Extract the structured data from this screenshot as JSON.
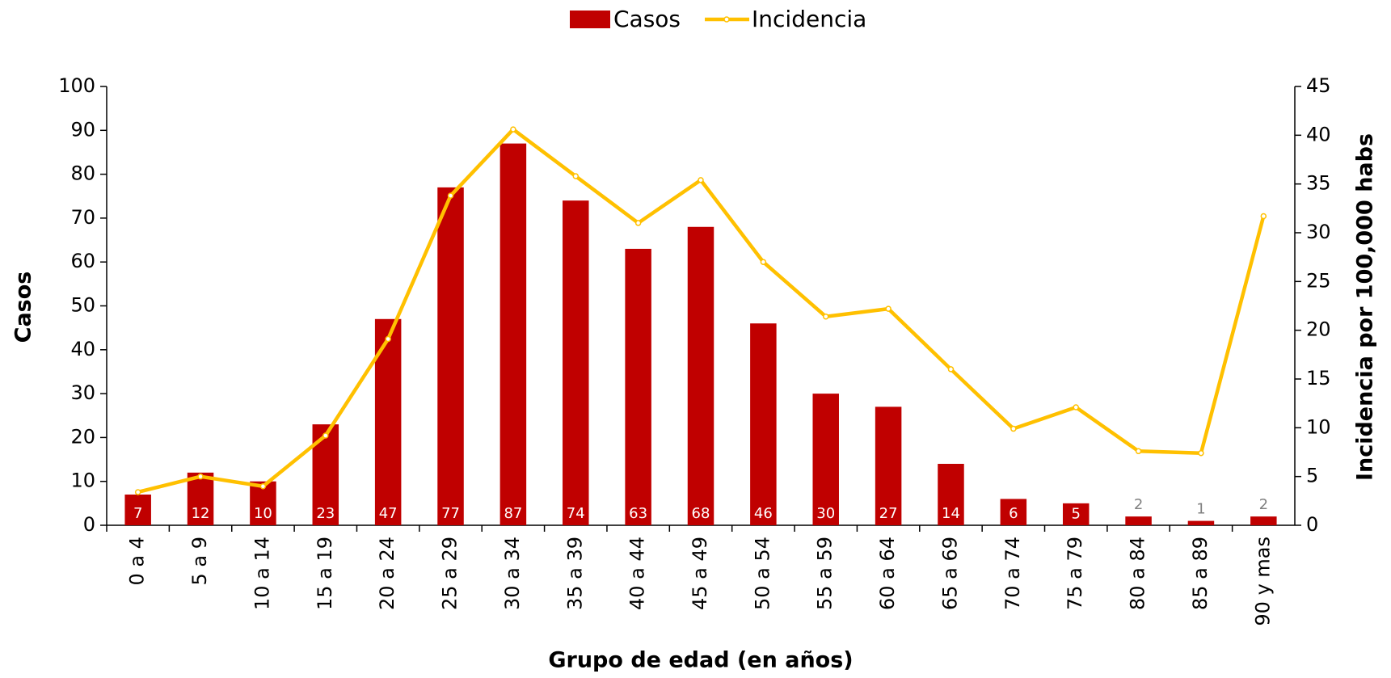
{
  "chart_data": {
    "type": "bar",
    "x_label": "Grupo de edad (en años)",
    "y_label": "Casos",
    "y2_label": "Incidencia por 100,000 habs",
    "categories": [
      "0 a 4",
      "5 a 9",
      "10 a 14",
      "15 a 19",
      "20 a 24",
      "25 a 29",
      "30 a 34",
      "35 a 39",
      "40 a 44",
      "45 a 49",
      "50 a 54",
      "55 a 59",
      "60 a 64",
      "65 a 69",
      "70 a 74",
      "75 a 79",
      "80 a 84",
      "85 a 89",
      "90 y mas"
    ],
    "series": [
      {
        "name": "Casos",
        "type": "bar",
        "color": "#c00000",
        "values": [
          7,
          12,
          10,
          23,
          47,
          77,
          87,
          74,
          63,
          68,
          46,
          30,
          27,
          14,
          6,
          5,
          2,
          1,
          2
        ]
      },
      {
        "name": "Incidencia",
        "type": "line",
        "axis": "y2",
        "color": "#ffc000",
        "values": [
          3.4,
          5.0,
          4.0,
          9.2,
          19.1,
          33.8,
          40.6,
          35.8,
          31.0,
          35.4,
          27.0,
          21.4,
          22.2,
          16.0,
          9.9,
          12.1,
          7.6,
          7.4,
          31.7
        ]
      }
    ],
    "ylim": [
      0,
      100
    ],
    "yticks": [
      0,
      10,
      20,
      30,
      40,
      50,
      60,
      70,
      80,
      90,
      100
    ],
    "y2lim": [
      0,
      45
    ],
    "y2ticks": [
      0,
      5,
      10,
      15,
      20,
      25,
      30,
      35,
      40,
      45
    ],
    "legend": "top"
  }
}
